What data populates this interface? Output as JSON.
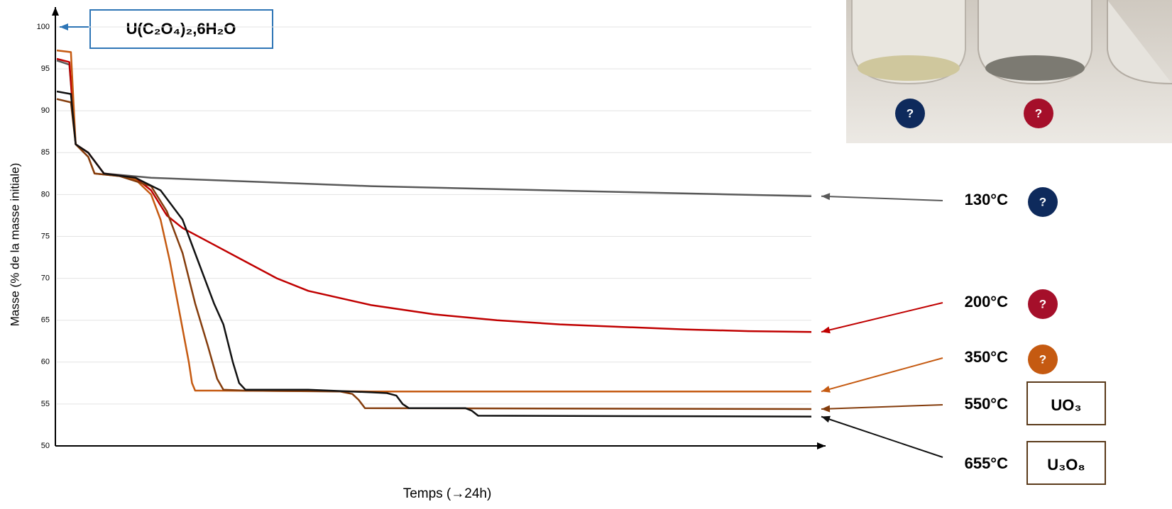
{
  "chart_data": {
    "type": "line",
    "y_label": "Masse (% de la masse initiale)",
    "x_label": "Temps (→24h)",
    "start_label": "U(C₂O₄)₂,6H₂O",
    "photo_markers": [
      {
        "text": "?",
        "color": "#0e2a5c"
      },
      {
        "text": "?",
        "color": "#a50f2a"
      }
    ],
    "xlim": [
      0,
      24
    ],
    "ylim": [
      50,
      100
    ],
    "yticks": [
      50,
      55,
      60,
      65,
      70,
      75,
      80,
      85,
      90,
      95,
      100
    ],
    "grid": true,
    "series": [
      {
        "name": "130°C",
        "color": "#595959",
        "product": "?",
        "product_color": "#0e2a5c",
        "x": [
          0,
          0.4,
          0.6,
          1,
          1.5,
          3,
          10,
          18,
          24
        ],
        "values": [
          96,
          95.5,
          86,
          85,
          82.5,
          82,
          81,
          80.3,
          79.8
        ]
      },
      {
        "name": "200°C",
        "color": "#c00000",
        "product": "?",
        "product_color": "#a50f2a",
        "x": [
          0,
          0.4,
          0.6,
          1,
          1.5,
          2.5,
          3,
          3.5,
          4,
          5,
          6,
          7,
          8,
          10,
          12,
          14,
          16,
          18,
          20,
          22,
          24
        ],
        "values": [
          96.2,
          95.8,
          86,
          85,
          82.5,
          82,
          80.5,
          77.5,
          76,
          74,
          72,
          70,
          68.5,
          66.8,
          65.7,
          65,
          64.5,
          64.2,
          63.9,
          63.7,
          63.6
        ]
      },
      {
        "name": "350°C",
        "color": "#c55a11",
        "product": "?",
        "product_color": "#c55a11",
        "x": [
          0,
          0.45,
          0.6,
          1,
          1.2,
          2,
          2.5,
          3,
          3.3,
          3.6,
          3.9,
          4.2,
          4.3,
          4.4,
          5,
          10,
          24
        ],
        "values": [
          97.2,
          97,
          86,
          84.5,
          82.5,
          82.2,
          81.8,
          80,
          77,
          72,
          66,
          60,
          57.5,
          56.6,
          56.6,
          56.5,
          56.5
        ]
      },
      {
        "name": "550°C",
        "color": "#843c0c",
        "product": "UO₃",
        "x": [
          0,
          0.45,
          0.6,
          1,
          1.2,
          2,
          3,
          3.5,
          4,
          4.4,
          4.8,
          5.1,
          5.3,
          6,
          9,
          9.4,
          9.6,
          9.8,
          24
        ],
        "values": [
          91.4,
          91,
          86,
          84.5,
          82.5,
          82.2,
          81,
          78,
          73,
          67,
          62,
          58,
          56.7,
          56.6,
          56.5,
          56.2,
          55.5,
          54.5,
          54.4
        ]
      },
      {
        "name": "655°C",
        "color": "#111111",
        "product": "U₃O₈",
        "x": [
          0,
          0.45,
          0.6,
          1,
          1.5,
          2.5,
          3.3,
          4,
          4.5,
          5,
          5.3,
          5.6,
          5.8,
          6,
          8,
          10,
          10.5,
          10.8,
          11,
          11.2,
          13,
          13.2,
          13.4,
          24
        ],
        "values": [
          92.3,
          92,
          86,
          85,
          82.5,
          82,
          80.5,
          77,
          72,
          67,
          64.5,
          60,
          57.5,
          56.7,
          56.7,
          56.4,
          56.3,
          56,
          55,
          54.5,
          54.5,
          54.2,
          53.6,
          53.5
        ]
      }
    ]
  }
}
